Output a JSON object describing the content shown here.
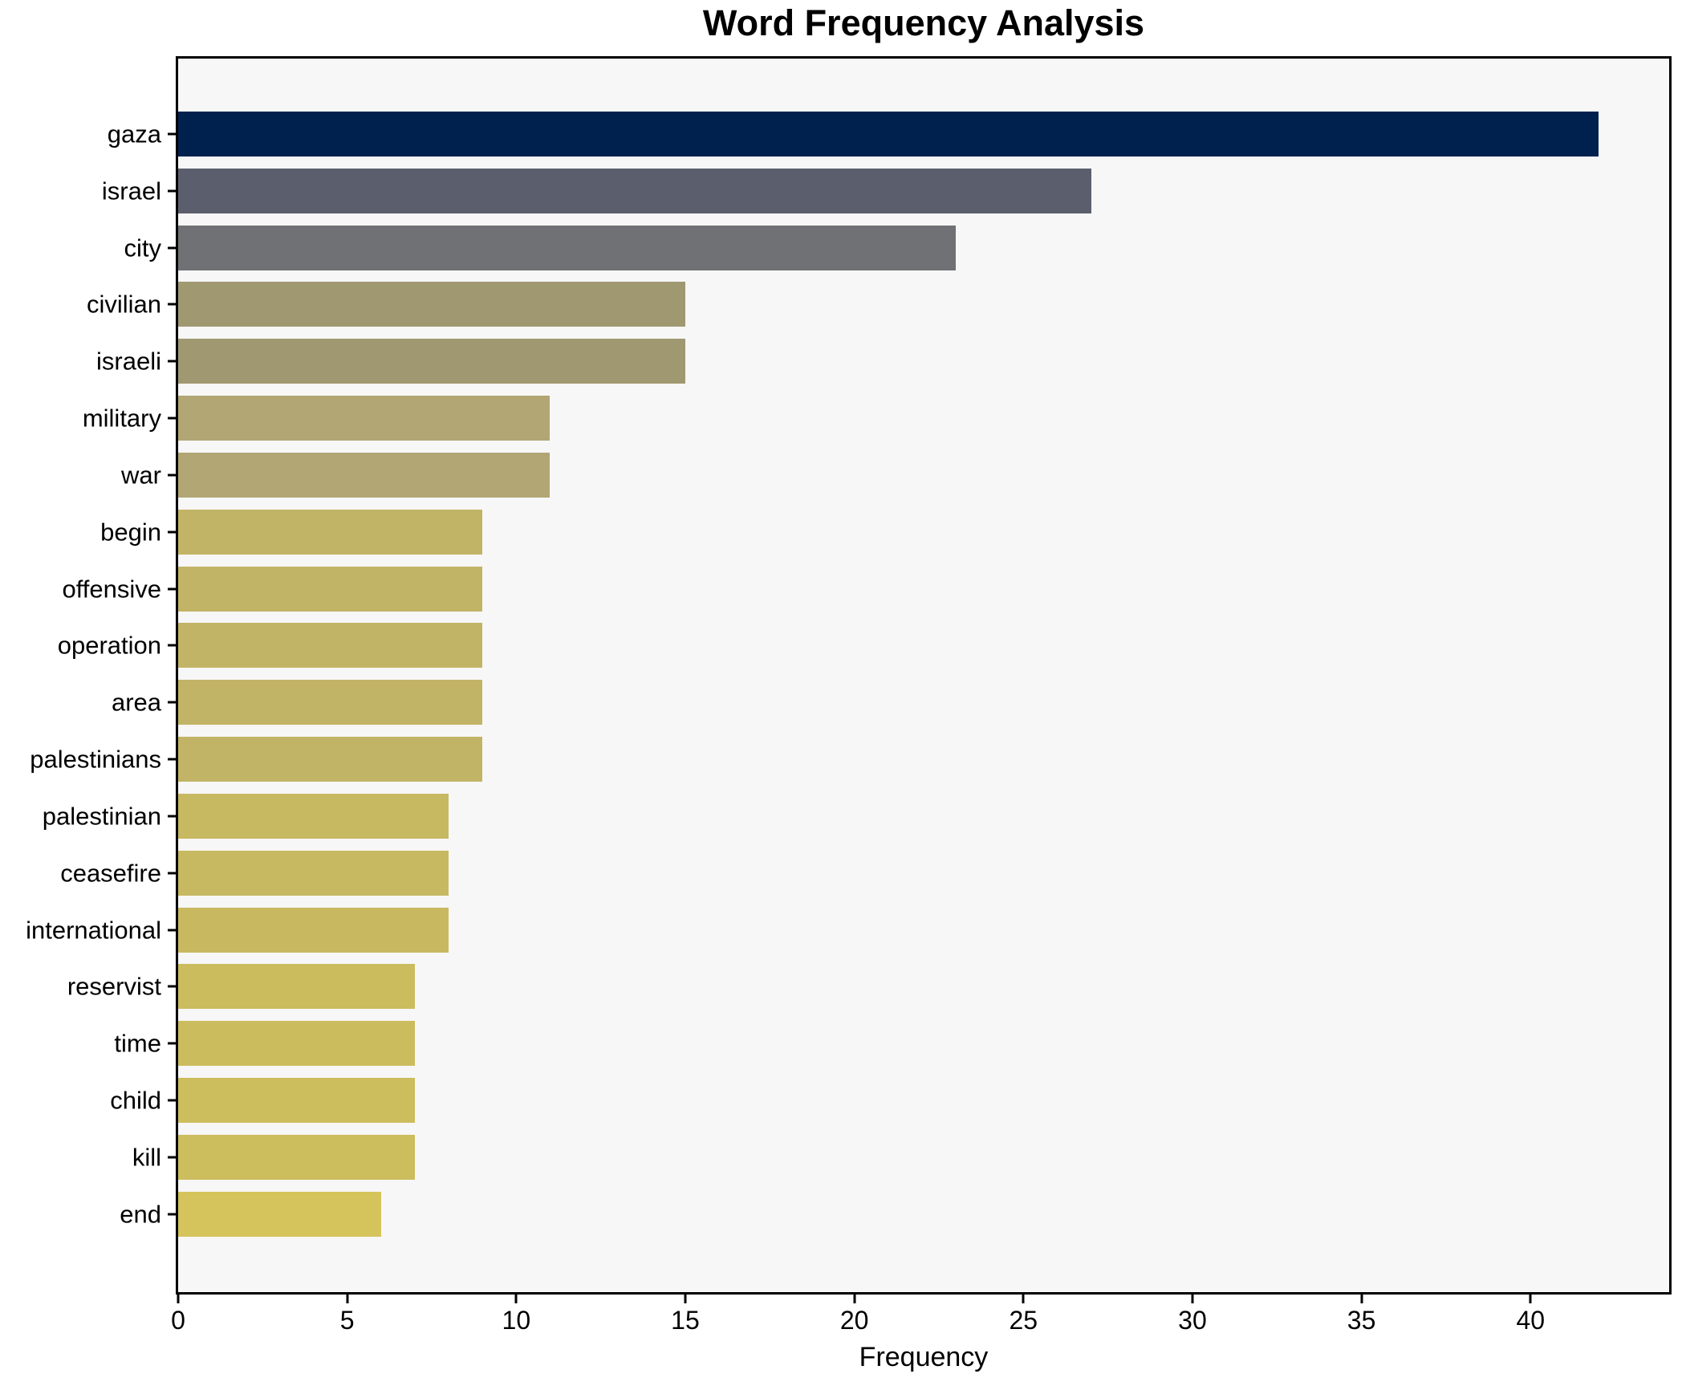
{
  "page": {
    "background": "#ffffff"
  },
  "figure_style": {
    "plot_background": "#f7f7f7",
    "spine_color": "#000000",
    "tick_color": "#000000",
    "text_color": "#000000"
  },
  "chart_data": {
    "type": "bar",
    "orientation": "horizontal",
    "title": "Word Frequency Analysis",
    "xlabel": "Frequency",
    "ylabel": "",
    "categories": [
      "gaza",
      "israel",
      "city",
      "civilian",
      "israeli",
      "military",
      "war",
      "begin",
      "offensive",
      "operation",
      "area",
      "palestinians",
      "palestinian",
      "ceasefire",
      "international",
      "reservist",
      "time",
      "child",
      "kill",
      "end"
    ],
    "values": [
      42,
      27,
      23,
      15,
      15,
      11,
      11,
      9,
      9,
      9,
      9,
      9,
      8,
      8,
      8,
      7,
      7,
      7,
      7,
      6
    ],
    "bar_colors": [
      "#00214e",
      "#5b5f6d",
      "#707174",
      "#a09871",
      "#a09871",
      "#b1a674",
      "#b1a674",
      "#c2b466",
      "#c2b466",
      "#c2b466",
      "#c2b466",
      "#c2b466",
      "#c7b862",
      "#c7b862",
      "#c8b961",
      "#cbbc5e",
      "#cbbc5e",
      "#ccbd5d",
      "#ccbd5d",
      "#d5c45b"
    ],
    "xlim": [
      0,
      44.1
    ],
    "xticks": [
      0,
      5,
      10,
      15,
      20,
      25,
      30,
      35,
      40
    ],
    "grid": false,
    "legend_position": "none"
  }
}
